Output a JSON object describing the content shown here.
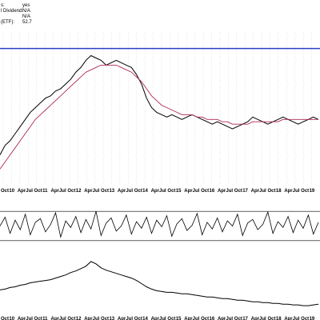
{
  "info_box": [
    {
      "label": "s:",
      "value": "yes"
    },
    {
      "label": "l Dividend:",
      "value": "N/A"
    },
    {
      "label": "",
      "value": "N/A"
    },
    {
      "label": "(ETF):",
      "value": "52.7"
    }
  ],
  "x_ticks_top": [
    "Oct",
    "10",
    "Apr",
    "Jul",
    "Oct",
    "11",
    "Apr",
    "Jul",
    "Oct",
    "12",
    "Apr",
    "Jul",
    "Oct",
    "13",
    "Apr",
    "Jul",
    "Oct",
    "14",
    "Apr",
    "Jul",
    "Oct",
    "15",
    "Apr",
    "Jul",
    "Oct",
    "16",
    "Apr",
    "Jul",
    "Oct",
    "17",
    "Apr",
    "Jul",
    "Oct",
    "18",
    "Apr",
    "Jul",
    "Oct",
    "19"
  ],
  "x_ticks_bottom": [
    "Oct",
    "10",
    "Apr",
    "Jul",
    "Oct",
    "11",
    "Apr",
    "Jul",
    "Oct",
    "12",
    "Apr",
    "Jul",
    "Oct",
    "13",
    "Apr",
    "Jul",
    "Oct",
    "14",
    "Apr",
    "Jul",
    "Oct",
    "15",
    "Apr",
    "Jul",
    "Oct",
    "16",
    "Apr",
    "Jul",
    "Oct",
    "17",
    "Apr",
    "Jul",
    "Oct",
    "18",
    "Apr",
    "Jul",
    "Oct",
    "19"
  ],
  "colors": {
    "price": "#000000",
    "moving_average": "#b0275a",
    "resistance_line": "#2b3fc4",
    "gridline": "#bdbdbd",
    "oscillator_band": "#000000"
  },
  "chart_data": [
    {
      "type": "line",
      "panel": "price",
      "title": "",
      "series": [
        {
          "values": [
            38,
            42,
            44,
            47,
            50,
            53,
            56,
            58,
            60,
            62,
            63,
            65,
            66,
            68,
            70,
            73,
            75,
            78,
            80,
            79,
            78,
            76,
            77,
            78,
            77,
            76,
            75,
            72,
            68,
            62,
            58,
            56,
            55,
            54,
            55,
            54,
            53,
            54,
            55,
            54,
            53,
            52,
            51,
            52,
            51,
            50,
            49,
            50,
            51,
            52,
            54,
            53,
            52,
            51,
            52,
            53,
            54,
            53,
            52,
            51,
            52,
            53,
            54,
            53
          ]
        },
        {
          "values": [
            32,
            35,
            38,
            41,
            44,
            47,
            50,
            53,
            55,
            57,
            59,
            61,
            63,
            65,
            67,
            69,
            71,
            73,
            74,
            75,
            76,
            76,
            76,
            76,
            75,
            74,
            73,
            71,
            69,
            66,
            63,
            61,
            59,
            58,
            57,
            56,
            55,
            55,
            55,
            54,
            54,
            53,
            53,
            53,
            52,
            52,
            51,
            51,
            51,
            51,
            52,
            52,
            52,
            52,
            52,
            52,
            53,
            53,
            53,
            53,
            53,
            53,
            53,
            53
          ]
        }
      ],
      "reference_line": 83,
      "ylim": [
        25,
        90
      ]
    },
    {
      "type": "line",
      "panel": "oscillator",
      "series": [
        {
          "values": [
            50,
            62,
            40,
            58,
            45,
            66,
            38,
            55,
            60,
            42,
            52,
            68,
            35,
            57,
            48,
            63,
            41,
            59,
            46,
            70,
            37,
            54,
            61,
            43,
            50,
            65,
            39,
            56,
            47,
            62,
            40,
            58,
            49,
            64,
            36,
            53,
            60,
            44,
            51,
            67,
            38,
            55,
            46,
            61,
            42,
            57,
            50,
            66,
            37,
            54,
            59,
            45,
            52,
            69,
            40,
            56,
            48,
            63,
            41,
            58,
            47,
            65,
            39,
            55
          ]
        }
      ],
      "bands": [
        30,
        70
      ],
      "ylim": [
        20,
        80
      ]
    },
    {
      "type": "line",
      "panel": "relative",
      "series": [
        {
          "values": [
            30,
            31,
            33,
            34,
            36,
            37,
            39,
            40,
            41,
            42,
            43,
            45,
            47,
            49,
            52,
            54,
            57,
            60,
            66,
            63,
            58,
            55,
            53,
            51,
            49,
            47,
            45,
            42,
            38,
            34,
            31,
            29,
            28,
            27,
            27,
            26,
            25,
            25,
            24,
            23,
            22,
            21,
            21,
            20,
            19,
            19,
            18,
            17,
            17,
            16,
            15,
            15,
            14,
            14,
            13,
            13,
            12,
            12,
            11,
            11,
            10,
            10,
            11,
            12
          ]
        }
      ],
      "ylim": [
        0,
        75
      ]
    }
  ]
}
